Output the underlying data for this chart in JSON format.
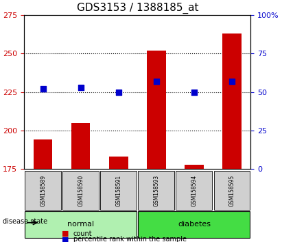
{
  "title": "GDS3153 / 1388185_at",
  "samples": [
    "GSM158589",
    "GSM158590",
    "GSM158591",
    "GSM158593",
    "GSM158594",
    "GSM158595"
  ],
  "red_values": [
    194,
    205,
    183,
    252,
    178,
    263
  ],
  "blue_percentiles": [
    52,
    53,
    50,
    57,
    50,
    57
  ],
  "groups": [
    {
      "label": "normal",
      "indices": [
        0,
        1,
        2
      ],
      "color": "#b0f0b0"
    },
    {
      "label": "diabetes",
      "indices": [
        3,
        4,
        5
      ],
      "color": "#44dd44"
    }
  ],
  "ylim_left": [
    175,
    275
  ],
  "ylim_right": [
    0,
    100
  ],
  "yticks_left": [
    175,
    200,
    225,
    250,
    275
  ],
  "yticks_right": [
    0,
    25,
    50,
    75,
    100
  ],
  "ytick_labels_right": [
    "0",
    "25",
    "50",
    "75",
    "100%"
  ],
  "bar_color": "#cc0000",
  "dot_color": "#0000cc",
  "bar_width": 0.5,
  "grid_color": "#000000",
  "bg_color": "#ffffff",
  "plot_bg_color": "#ffffff",
  "tick_gray": "#c0c0c0",
  "label_fontsize": 8,
  "title_fontsize": 11,
  "legend_items": [
    {
      "color": "#cc0000",
      "label": "count"
    },
    {
      "color": "#0000cc",
      "label": "percentile rank within the sample"
    }
  ],
  "disease_state_label": "disease state",
  "xticklabel_area_color": "#d0d0d0"
}
